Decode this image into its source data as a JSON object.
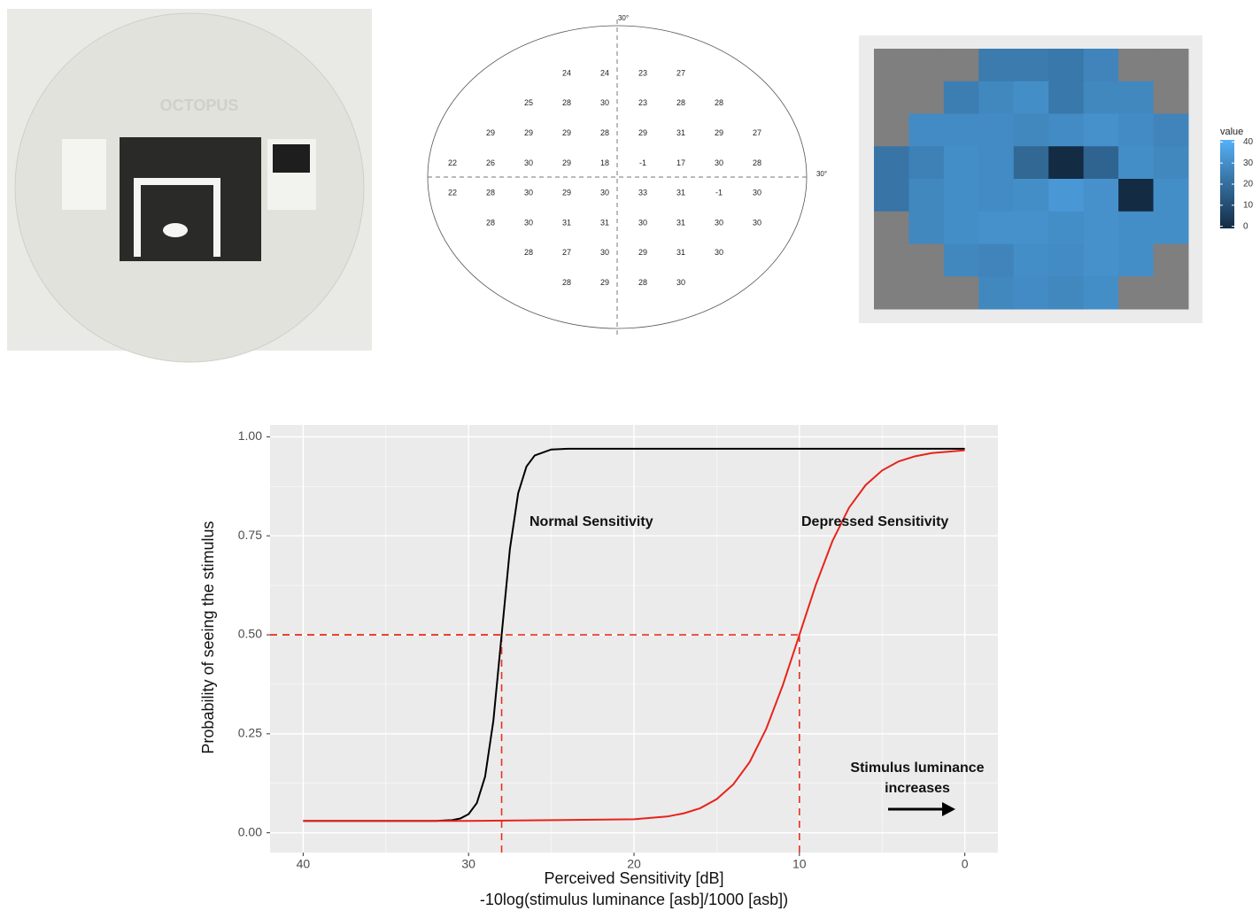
{
  "photo": {
    "brand": "OCTOPUS"
  },
  "visual_field": {
    "top_label": "30°",
    "right_label": "30°"
  },
  "chart_data": [
    {
      "type": "heatmap",
      "legend_title": "value",
      "values": [
        [
          null,
          null,
          null,
          24,
          24,
          23,
          27,
          null,
          null
        ],
        [
          null,
          null,
          25,
          28,
          30,
          23,
          28,
          28,
          null
        ],
        [
          null,
          29,
          29,
          29,
          28,
          29,
          31,
          29,
          27
        ],
        [
          22,
          26,
          30,
          29,
          18,
          -1,
          17,
          30,
          28
        ],
        [
          22,
          28,
          30,
          29,
          30,
          33,
          31,
          -1,
          30
        ],
        [
          null,
          28,
          30,
          31,
          31,
          30,
          31,
          30,
          30
        ],
        [
          null,
          null,
          28,
          27,
          30,
          29,
          31,
          30,
          null
        ],
        [
          null,
          null,
          null,
          28,
          29,
          28,
          30,
          null,
          null
        ]
      ],
      "clim": [
        -1,
        41
      ],
      "cticks": [
        0,
        10,
        20,
        30,
        40
      ],
      "low_color": "#132b43",
      "high_color": "#56b1f7",
      "na_color": "#7f7f7f"
    },
    {
      "type": "line",
      "xlabel": [
        "Perceived Sensitivity [dB]",
        "-10log(stimulus luminance [asb]/1000 [asb])"
      ],
      "ylabel": "Probability of seeing the stimulus",
      "xlim": [
        42,
        -2
      ],
      "ylim": [
        -0.05,
        1.03
      ],
      "xticks": [
        40,
        30,
        20,
        10,
        0
      ],
      "xminor": [
        35,
        25,
        15,
        5
      ],
      "yticks": [
        {
          "value": 0,
          "label": "0.00"
        },
        {
          "value": 0.25,
          "label": "0.25"
        },
        {
          "value": 0.5,
          "label": "0.50"
        },
        {
          "value": 0.75,
          "label": "0.75"
        },
        {
          "value": 1,
          "label": "1.00"
        }
      ],
      "yminor": [
        0.125,
        0.375,
        0.625,
        0.875
      ],
      "grid": true,
      "series": [
        {
          "name": "Normal Sensitivity",
          "color": "#000000",
          "x": [
            40,
            35,
            32,
            31,
            30.5,
            30,
            29.5,
            29,
            28.5,
            28,
            27.5,
            27,
            26.5,
            26,
            25,
            24,
            20,
            10,
            0
          ],
          "values": [
            0.03,
            0.03,
            0.03,
            0.032,
            0.036,
            0.047,
            0.075,
            0.142,
            0.283,
            0.5,
            0.717,
            0.858,
            0.925,
            0.953,
            0.968,
            0.97,
            0.97,
            0.97,
            0.97
          ]
        },
        {
          "name": "Depressed Sensitivity",
          "color": "#e8231b",
          "x": [
            40,
            30,
            20,
            18,
            17,
            16,
            15,
            14,
            13,
            12,
            11,
            10,
            9,
            8,
            7,
            6,
            5,
            4,
            3,
            2,
            0
          ],
          "values": [
            0.03,
            0.03,
            0.034,
            0.041,
            0.049,
            0.062,
            0.085,
            0.122,
            0.179,
            0.263,
            0.373,
            0.5,
            0.627,
            0.737,
            0.821,
            0.878,
            0.915,
            0.938,
            0.951,
            0.959,
            0.966
          ]
        }
      ],
      "reference_lines": [
        {
          "x": 28,
          "y": 0.5
        },
        {
          "x": 10,
          "y": 0.5
        }
      ],
      "reference_color": "#e8321e",
      "annotations": [
        "Stimulus luminance",
        "increases"
      ]
    }
  ]
}
